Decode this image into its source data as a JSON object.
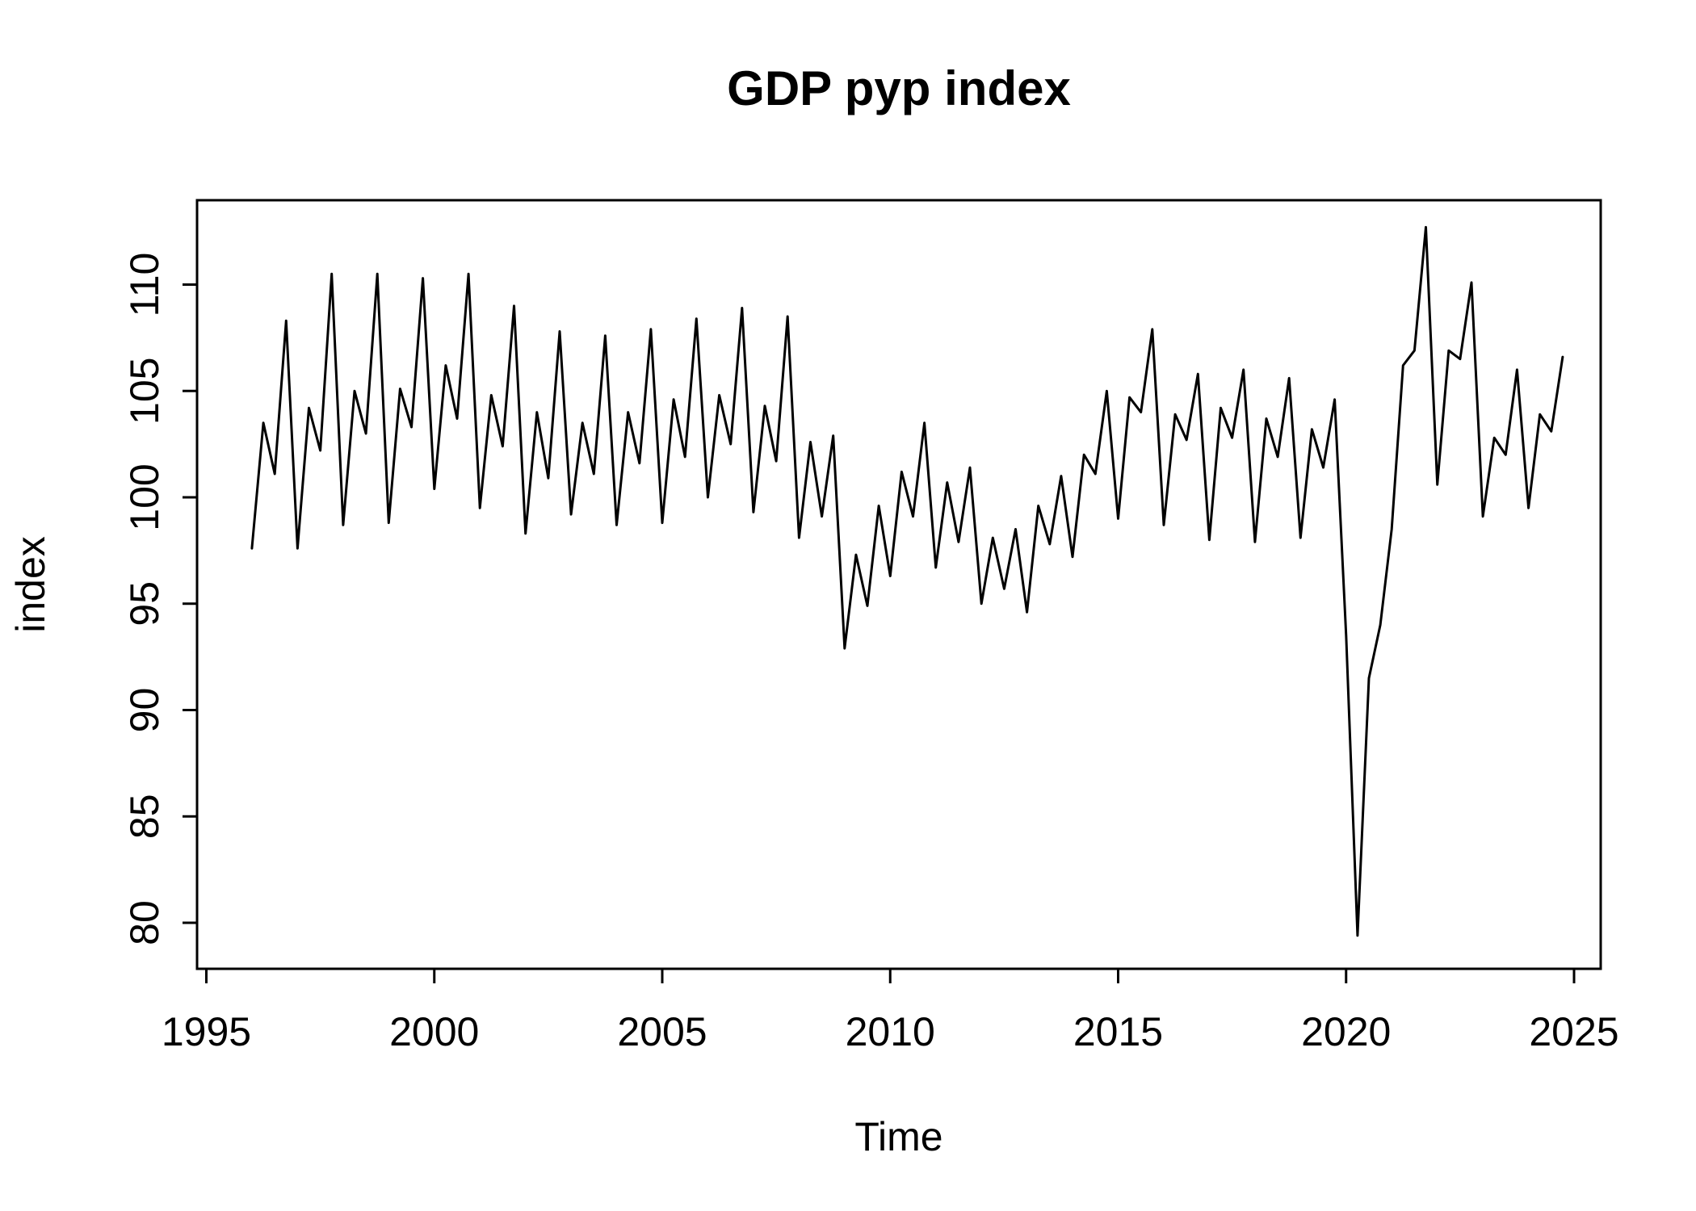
{
  "chart_data": {
    "type": "line",
    "title": "GDP pyp index",
    "xlabel": "Time",
    "ylabel": "index",
    "x_ticks": [
      1995,
      2000,
      2005,
      2010,
      2015,
      2020,
      2025
    ],
    "y_ticks": [
      80,
      85,
      90,
      95,
      100,
      105,
      110
    ],
    "xlim": [
      1994.8,
      2025.6
    ],
    "ylim": [
      77.8,
      114.0
    ],
    "grid": false,
    "legend_position": "none",
    "line_color": "#000000",
    "background_color": "#ffffff",
    "series": [
      {
        "name": "GDP pyp index",
        "frequency": "quarterly",
        "x_start": 1996.0,
        "x_step": 0.25,
        "x_end": 2024.75,
        "values": [
          97.6,
          103.5,
          101.1,
          108.3,
          97.6,
          104.2,
          102.2,
          110.5,
          98.7,
          105.0,
          103.0,
          110.5,
          98.8,
          105.1,
          103.3,
          110.3,
          100.4,
          106.2,
          103.7,
          110.5,
          99.5,
          104.8,
          102.4,
          109.0,
          98.3,
          104.0,
          100.9,
          107.8,
          99.2,
          103.5,
          101.1,
          107.6,
          98.7,
          104.0,
          101.6,
          107.9,
          98.8,
          104.6,
          101.9,
          108.4,
          100.0,
          104.8,
          102.5,
          108.9,
          99.3,
          104.3,
          101.7,
          108.5,
          98.1,
          102.6,
          99.1,
          102.9,
          92.9,
          97.3,
          94.9,
          99.6,
          96.3,
          101.2,
          99.1,
          103.5,
          96.7,
          100.7,
          97.9,
          101.4,
          95.0,
          98.1,
          95.7,
          98.5,
          94.6,
          99.6,
          97.8,
          101.0,
          97.2,
          102.0,
          101.1,
          105.0,
          99.0,
          104.7,
          104.0,
          107.9,
          98.7,
          103.9,
          102.7,
          105.8,
          98.0,
          104.2,
          102.8,
          106.0,
          97.9,
          103.7,
          101.9,
          105.6,
          98.1,
          103.2,
          101.4,
          104.6,
          93.5,
          79.4,
          91.5,
          94.0,
          98.5,
          106.2,
          106.9,
          112.7,
          100.6,
          106.9,
          106.5,
          110.1,
          99.1,
          102.8,
          102.0,
          106.0,
          99.5,
          103.9,
          103.1,
          106.6
        ]
      }
    ]
  }
}
